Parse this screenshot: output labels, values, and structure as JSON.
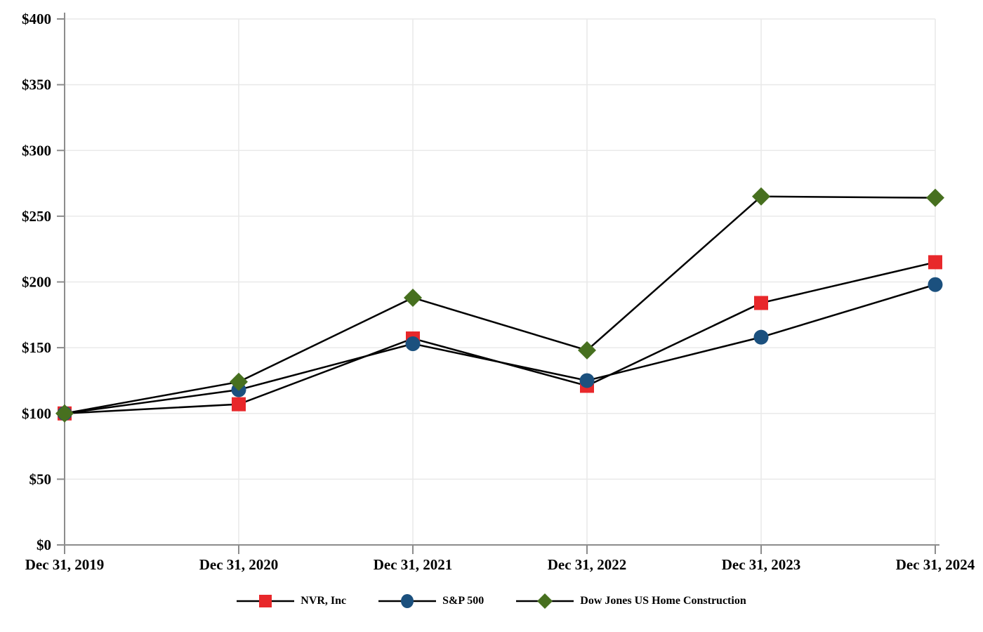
{
  "chart_data": {
    "type": "line",
    "title": "",
    "xlabel": "",
    "ylabel": "",
    "categories": [
      "Dec 31, 2019",
      "Dec 31, 2020",
      "Dec 31, 2021",
      "Dec 31, 2022",
      "Dec 31, 2023",
      "Dec 31, 2024"
    ],
    "series": [
      {
        "name": "NVR, Inc",
        "marker": "square",
        "marker_color": "#e8282b",
        "values": [
          100,
          107,
          157,
          121,
          184,
          215
        ]
      },
      {
        "name": "S&P 500",
        "marker": "circle",
        "marker_color": "#1b507e",
        "values": [
          100,
          118,
          153,
          125,
          158,
          198
        ]
      },
      {
        "name": "Dow Jones US Home Construction",
        "marker": "diamond",
        "marker_color": "#47701f",
        "values": [
          100,
          124,
          188,
          148,
          265,
          264
        ]
      }
    ],
    "line_color": "#000000",
    "ylim": [
      0,
      400
    ],
    "ytick_step": 50,
    "y_tick_labels": [
      "$0",
      "$50",
      "$100",
      "$150",
      "$200",
      "$250",
      "$300",
      "$350",
      "$400"
    ],
    "grid": true,
    "gridline_color": "#e9e9e9",
    "axis_color": "#8c8c8c",
    "legend_position": "bottom"
  }
}
